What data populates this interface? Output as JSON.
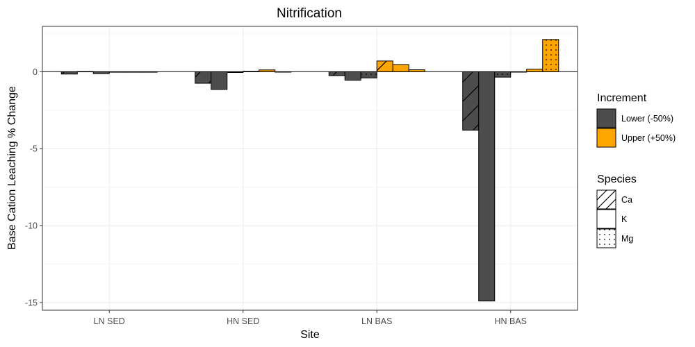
{
  "chart_data": {
    "type": "bar",
    "title": "Nitrification",
    "xlabel": "Site",
    "ylabel": "Base Cation Leaching % Change",
    "categories": [
      "LN SED",
      "HN SED",
      "LN BAS",
      "HN BAS"
    ],
    "ylim": [
      -15.5,
      2.95
    ],
    "yticks": [
      0,
      -5,
      -10,
      -15
    ],
    "ytick_labels": [
      "0",
      "-5",
      "-10",
      "-15"
    ],
    "grid": true,
    "legend_position": "right",
    "increment_legend": {
      "title": "Increment",
      "items": [
        {
          "label": "Lower (-50%)",
          "color": "#4d4d4d"
        },
        {
          "label": "Upper (+50%)",
          "color": "#ffa500"
        }
      ]
    },
    "species_legend": {
      "title": "Species",
      "items": [
        {
          "label": "Ca",
          "pattern": "stripe"
        },
        {
          "label": "K",
          "pattern": "none"
        },
        {
          "label": "Mg",
          "pattern": "dots"
        }
      ]
    },
    "bar_order": [
      {
        "increment": "Lower (-50%)",
        "species": "Ca"
      },
      {
        "increment": "Lower (-50%)",
        "species": "K"
      },
      {
        "increment": "Lower (-50%)",
        "species": "Mg"
      },
      {
        "increment": "Upper (+50%)",
        "species": "Ca"
      },
      {
        "increment": "Upper (+50%)",
        "species": "K"
      },
      {
        "increment": "Upper (+50%)",
        "species": "Mg"
      }
    ],
    "values": [
      [
        -0.15,
        0.02,
        -0.12,
        -0.03,
        -0.03,
        -0.03
      ],
      [
        -0.75,
        -1.15,
        -0.05,
        0.03,
        0.12,
        0.0
      ],
      [
        -0.25,
        -0.55,
        -0.4,
        0.7,
        0.47,
        0.13
      ],
      [
        -3.8,
        -14.9,
        -0.35,
        0.0,
        0.17,
        2.1
      ]
    ]
  }
}
